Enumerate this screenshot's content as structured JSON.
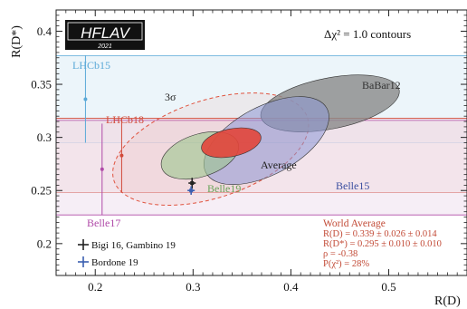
{
  "logo": {
    "title": "HFLAV",
    "year": "2021"
  },
  "contour_label": "Δχ² = 1.0 contours",
  "colors": {
    "lhcb15": "#5aa9d8",
    "lhcb18": "#d24a3a",
    "belle17": "#b04aa8",
    "babar_fill": "#8a8a8a",
    "belle15_fill": "#8d97d6",
    "belle19_fill": "#9cc78e",
    "average_fill": "#e2453a",
    "average_sigma": "#e0533f",
    "world_avg_text": "#c24a36",
    "sm_bigi": "#222222",
    "sm_bordone": "#3b5fb0",
    "lhcb15_band": "#dcecf6",
    "lhcb18_band": "#f4d6d4",
    "belle17_band": "#efe0ee"
  },
  "chart_data": {
    "type": "scatter",
    "xlabel": "R(D)",
    "ylabel": "R(D*)",
    "xlim": [
      0.16,
      0.58
    ],
    "ylim": [
      0.17,
      0.42
    ],
    "xticks": [
      0.2,
      0.3,
      0.4,
      0.5
    ],
    "yticks": [
      0.2,
      0.25,
      0.3,
      0.35,
      0.4
    ],
    "xtick_labels": [
      "0.2",
      "0.3",
      "0.4",
      "0.5"
    ],
    "ytick_labels": [
      "0.2",
      "0.25",
      "0.3",
      "0.35",
      "0.4"
    ],
    "bands": [
      {
        "name": "LHCb15",
        "ymin": 0.295,
        "ymax": 0.377,
        "color": "lhcb15_band"
      },
      {
        "name": "LHCb18",
        "ymin": 0.248,
        "ymax": 0.318,
        "color": "lhcb18_band"
      },
      {
        "name": "Belle17",
        "ymin": 0.227,
        "ymax": 0.316,
        "color": "belle17_band"
      }
    ],
    "points": [
      {
        "name": "LHCb15",
        "x": 0.19,
        "y": 0.336,
        "yerr": [
          0.041,
          0.041
        ],
        "color": "lhcb15"
      },
      {
        "name": "LHCb18",
        "x": 0.227,
        "y": 0.283,
        "yerr": [
          0.035,
          0.035
        ],
        "color": "lhcb18"
      },
      {
        "name": "Belle17",
        "x": 0.207,
        "y": 0.27,
        "yerr": [
          0.043,
          0.043
        ],
        "color": "belle17"
      }
    ],
    "ellipses": [
      {
        "name": "BaBar12",
        "cx": 0.44,
        "cy": 0.332,
        "rx": 0.072,
        "ry": 0.024,
        "angle_deg": 11,
        "fill": "babar_fill",
        "opacity": 0.8
      },
      {
        "name": "Belle15",
        "cx": 0.375,
        "cy": 0.297,
        "rx": 0.07,
        "ry": 0.032,
        "angle_deg": 28,
        "fill": "belle15_fill",
        "opacity": 0.55
      },
      {
        "name": "Belle19",
        "cx": 0.307,
        "cy": 0.283,
        "rx": 0.041,
        "ry": 0.02,
        "angle_deg": 18,
        "fill": "belle19_fill",
        "opacity": 0.6
      },
      {
        "name": "Average",
        "cx": 0.339,
        "cy": 0.295,
        "rx": 0.031,
        "ry": 0.013,
        "angle_deg": 12,
        "fill": "average_fill",
        "opacity": 0.9
      }
    ],
    "sigma_contour": {
      "label": "3σ",
      "cx": 0.318,
      "cy": 0.289,
      "rx": 0.104,
      "ry": 0.046,
      "angle_deg": 18,
      "color": "average_sigma"
    },
    "sm_predictions": [
      {
        "name": "Bigi 16, Gambino 19",
        "x": 0.299,
        "y": 0.257,
        "xerr": 0.003,
        "yerr": 0.005,
        "color": "sm_bigi"
      },
      {
        "name": "Bordone 19",
        "x": 0.298,
        "y": 0.25,
        "xerr": 0.003,
        "yerr": 0.004,
        "color": "sm_bordone"
      }
    ],
    "labels": {
      "lhcb15": "LHCb15",
      "lhcb18": "LHCb18",
      "belle17": "Belle17",
      "babar": "BaBar12",
      "belle15": "Belle15",
      "belle19": "Belle19",
      "average": "Average"
    },
    "world_average": {
      "title": "World Average",
      "lines": [
        "R(D) = 0.339 ± 0.026 ± 0.014",
        "R(D*) = 0.295 ± 0.010 ± 0.010",
        "ρ = -0.38",
        "P(χ²) = 28%"
      ]
    },
    "legend": [
      {
        "label": "Bigi 16, Gambino 19",
        "color": "sm_bigi"
      },
      {
        "label": "Bordone 19",
        "color": "sm_bordone"
      }
    ]
  }
}
